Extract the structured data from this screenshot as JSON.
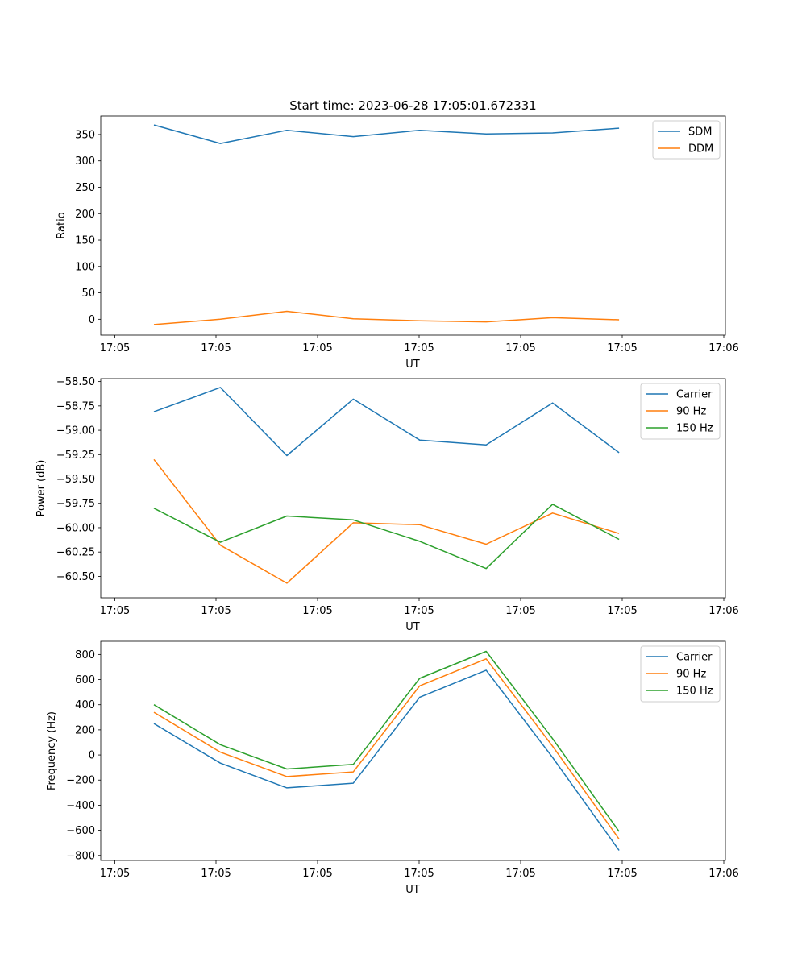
{
  "figure_title": "Start time: 2023-06-28 17:05:01.672331",
  "chart_data": [
    {
      "type": "line",
      "title": "Start time: 2023-06-28 17:05:01.672331",
      "xlabel": "UT",
      "ylabel": "Ratio",
      "x_ticks": [
        "17:05",
        "17:05",
        "17:05",
        "17:05",
        "17:05",
        "17:05",
        "17:06"
      ],
      "x": [
        1,
        2,
        3,
        4,
        5,
        6,
        7,
        8
      ],
      "xlim": [
        0.2,
        9.6
      ],
      "ylim": [
        -30,
        385
      ],
      "y_ticks": [
        0,
        50,
        100,
        150,
        200,
        250,
        300,
        350
      ],
      "legend_position": "top-right",
      "grid": false,
      "series": [
        {
          "name": "SDM",
          "color": "#1f77b4",
          "values": [
            368,
            333,
            358,
            346,
            358,
            351,
            353,
            362
          ]
        },
        {
          "name": "DDM",
          "color": "#ff7f0e",
          "values": [
            -10,
            0,
            15,
            1,
            -3,
            -5,
            3,
            -1
          ]
        }
      ]
    },
    {
      "type": "line",
      "xlabel": "UT",
      "ylabel": "Power (dB)",
      "x_ticks": [
        "17:05",
        "17:05",
        "17:05",
        "17:05",
        "17:05",
        "17:05",
        "17:06"
      ],
      "x": [
        1,
        2,
        3,
        4,
        5,
        6,
        7,
        8
      ],
      "xlim": [
        0.2,
        9.6
      ],
      "ylim": [
        -60.72,
        -58.47
      ],
      "y_ticks": [
        -60.5,
        -60.25,
        -60.0,
        -59.75,
        -59.5,
        -59.25,
        -59.0,
        -58.75,
        -58.5
      ],
      "y_tick_labels": [
        "−60.50",
        "−60.25",
        "−60.00",
        "−59.75",
        "−59.50",
        "−59.25",
        "−59.00",
        "−58.75",
        "−58.50"
      ],
      "legend_position": "top-right",
      "grid": false,
      "series": [
        {
          "name": "Carrier",
          "color": "#1f77b4",
          "values": [
            -58.81,
            -58.56,
            -59.26,
            -58.68,
            -59.1,
            -59.15,
            -58.72,
            -59.23
          ]
        },
        {
          "name": "90 Hz",
          "color": "#ff7f0e",
          "values": [
            -59.3,
            -60.18,
            -60.57,
            -59.95,
            -59.97,
            -60.17,
            -59.85,
            -60.06
          ]
        },
        {
          "name": "150 Hz",
          "color": "#2ca02c",
          "values": [
            -59.8,
            -60.15,
            -59.88,
            -59.92,
            -60.14,
            -60.42,
            -59.76,
            -60.12
          ]
        }
      ]
    },
    {
      "type": "line",
      "xlabel": "UT",
      "ylabel": "Frequency (Hz)",
      "x_ticks": [
        "17:05",
        "17:05",
        "17:05",
        "17:05",
        "17:05",
        "17:05",
        "17:06"
      ],
      "x": [
        1,
        2,
        3,
        4,
        5,
        6,
        7,
        8
      ],
      "xlim": [
        0.2,
        9.6
      ],
      "ylim": [
        -840,
        905
      ],
      "y_ticks": [
        -800,
        -600,
        -400,
        -200,
        0,
        200,
        400,
        600,
        800
      ],
      "y_tick_labels": [
        "−800",
        "−600",
        "−400",
        "−200",
        "0",
        "200",
        "400",
        "600",
        "800"
      ],
      "legend_position": "top-right",
      "grid": false,
      "series": [
        {
          "name": "Carrier",
          "color": "#1f77b4",
          "values": [
            250,
            -65,
            -262,
            -225,
            460,
            675,
            -20,
            -760
          ]
        },
        {
          "name": "90 Hz",
          "color": "#ff7f0e",
          "values": [
            340,
            22,
            -172,
            -135,
            550,
            765,
            70,
            -670
          ]
        },
        {
          "name": "150 Hz",
          "color": "#2ca02c",
          "values": [
            400,
            82,
            -112,
            -75,
            610,
            825,
            130,
            -610
          ]
        }
      ]
    }
  ]
}
